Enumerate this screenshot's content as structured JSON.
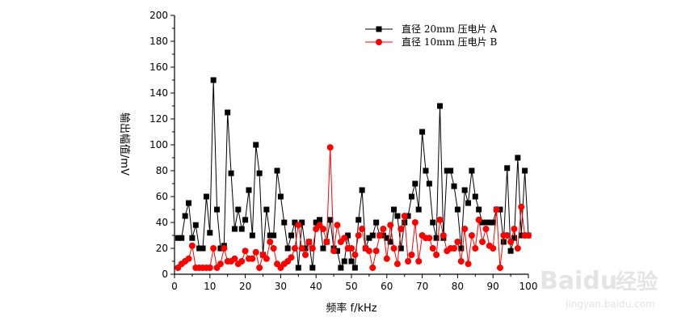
{
  "chart_data": {
    "type": "line",
    "title": "",
    "xlabel": "频率 f/kHz",
    "ylabel": "输出幅值/mV",
    "xlim": [
      0,
      100
    ],
    "ylim": [
      0,
      200
    ],
    "xticks": [
      "0",
      "10",
      "20",
      "30",
      "40",
      "50",
      "60",
      "70",
      "80",
      "90",
      "100"
    ],
    "yticks": [
      "0",
      "20",
      "40",
      "60",
      "80",
      "100",
      "120",
      "140",
      "160",
      "180",
      "200"
    ],
    "legend_position": "top-right",
    "grid": false,
    "series": [
      {
        "name": "直径 20mm 压电片 A",
        "color": "#000000",
        "marker": "square",
        "x": [
          1,
          2,
          3,
          4,
          5,
          6,
          7,
          8,
          9,
          10,
          11,
          12,
          13,
          14,
          15,
          16,
          17,
          18,
          19,
          20,
          21,
          22,
          23,
          24,
          25,
          26,
          27,
          28,
          29,
          30,
          31,
          32,
          33,
          34,
          35,
          36,
          37,
          38,
          39,
          40,
          41,
          42,
          43,
          44,
          45,
          46,
          47,
          48,
          49,
          50,
          51,
          52,
          53,
          54,
          55,
          56,
          57,
          58,
          59,
          60,
          61,
          62,
          63,
          64,
          65,
          66,
          67,
          68,
          69,
          70,
          71,
          72,
          73,
          74,
          75,
          76,
          77,
          78,
          79,
          80,
          81,
          82,
          83,
          84,
          85,
          86,
          87,
          88,
          89,
          90,
          91,
          92,
          93,
          94,
          95,
          96,
          97,
          98,
          99,
          100
        ],
        "y": [
          28,
          28,
          45,
          55,
          28,
          38,
          20,
          20,
          60,
          32,
          150,
          50,
          20,
          22,
          125,
          78,
          35,
          50,
          35,
          42,
          65,
          30,
          100,
          78,
          15,
          50,
          30,
          30,
          80,
          60,
          40,
          20,
          30,
          40,
          5,
          40,
          20,
          25,
          5,
          40,
          42,
          20,
          25,
          42,
          20,
          18,
          5,
          10,
          30,
          10,
          5,
          42,
          65,
          20,
          28,
          30,
          40,
          30,
          30,
          28,
          25,
          50,
          45,
          20,
          40,
          45,
          60,
          70,
          50,
          110,
          80,
          70,
          40,
          28,
          130,
          28,
          80,
          80,
          68,
          50,
          20,
          65,
          55,
          80,
          60,
          50,
          40,
          40,
          40,
          40,
          50,
          50,
          25,
          82,
          18,
          28,
          90,
          30,
          80,
          30
        ]
      },
      {
        "name": "直径 10mm 压电片 B",
        "color": "#ff0000",
        "marker": "circle",
        "x": [
          1,
          2,
          3,
          4,
          5,
          6,
          7,
          8,
          9,
          10,
          11,
          12,
          13,
          14,
          15,
          16,
          17,
          18,
          19,
          20,
          21,
          22,
          23,
          24,
          25,
          26,
          27,
          28,
          29,
          30,
          31,
          32,
          33,
          34,
          35,
          36,
          37,
          38,
          39,
          40,
          41,
          42,
          43,
          44,
          45,
          46,
          47,
          48,
          49,
          50,
          51,
          52,
          53,
          54,
          55,
          56,
          57,
          58,
          59,
          60,
          61,
          62,
          63,
          64,
          65,
          66,
          67,
          68,
          69,
          70,
          71,
          72,
          73,
          74,
          75,
          76,
          77,
          78,
          79,
          80,
          81,
          82,
          83,
          84,
          85,
          86,
          87,
          88,
          89,
          90,
          91,
          92,
          93,
          94,
          95,
          96,
          97,
          98,
          99,
          100
        ],
        "y": [
          5,
          8,
          10,
          12,
          22,
          5,
          5,
          5,
          5,
          5,
          20,
          5,
          8,
          20,
          10,
          10,
          12,
          8,
          10,
          18,
          12,
          12,
          17,
          5,
          15,
          12,
          25,
          20,
          8,
          5,
          8,
          10,
          13,
          20,
          38,
          20,
          15,
          25,
          20,
          35,
          38,
          35,
          25,
          98,
          18,
          38,
          25,
          28,
          20,
          20,
          15,
          30,
          35,
          20,
          18,
          5,
          18,
          30,
          35,
          12,
          38,
          20,
          8,
          35,
          45,
          10,
          15,
          40,
          10,
          30,
          28,
          28,
          20,
          15,
          42,
          30,
          18,
          20,
          20,
          25,
          10,
          35,
          8,
          30,
          20,
          42,
          25,
          35,
          22,
          20,
          50,
          5,
          30,
          30,
          25,
          35,
          20,
          52,
          30,
          30
        ]
      }
    ]
  },
  "watermark": {
    "brand": "Baidu",
    "suffix": "经验",
    "url": "jingyan.baidu.com"
  }
}
